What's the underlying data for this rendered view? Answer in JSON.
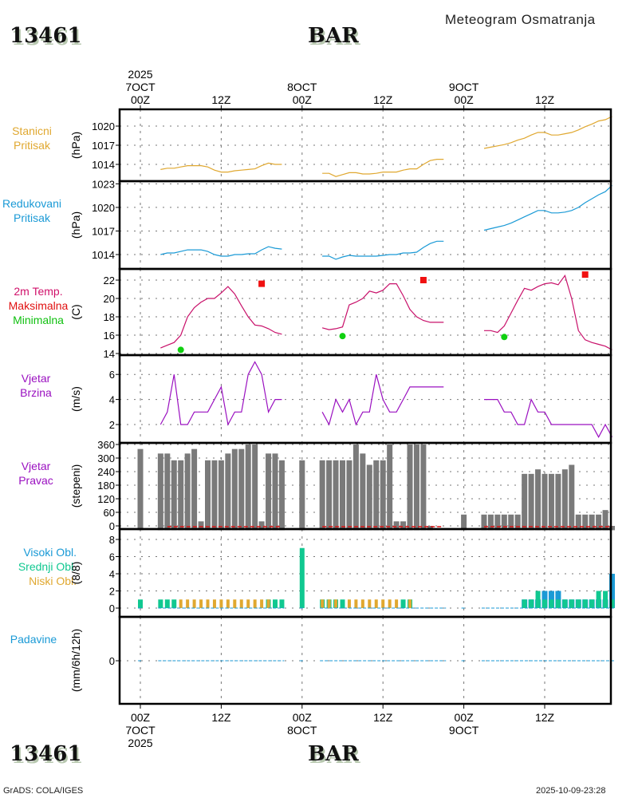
{
  "header": {
    "station_id": "13461",
    "station_name": "BAR",
    "title": "Meteogram Osmatranja"
  },
  "footer": {
    "left": "GrADS: COLA/IGES",
    "right": "2025-10-09-23:28",
    "station_id": "13461",
    "station_name": "BAR"
  },
  "time_axis": {
    "top_ticks": [
      {
        "lines": [
          "2025",
          "7OCT",
          "00Z"
        ]
      },
      {
        "lines": [
          "12Z"
        ]
      },
      {
        "lines": [
          "8OCT",
          "00Z"
        ]
      },
      {
        "lines": [
          "12Z"
        ]
      },
      {
        "lines": [
          "9OCT",
          "00Z"
        ]
      },
      {
        "lines": [
          "12Z"
        ]
      }
    ],
    "bottom_ticks": [
      {
        "lines": [
          "00Z",
          "7OCT",
          "2025"
        ]
      },
      {
        "lines": [
          "12Z"
        ]
      },
      {
        "lines": [
          "00Z",
          "8OCT"
        ]
      },
      {
        "lines": [
          "12Z"
        ]
      },
      {
        "lines": [
          "00Z",
          "9OCT"
        ]
      },
      {
        "lines": [
          "12Z"
        ]
      }
    ],
    "tick_hours": [
      0,
      12,
      24,
      36,
      48,
      60
    ],
    "range_hours": [
      -3,
      70
    ]
  },
  "panels": {
    "station_pressure": {
      "labels": [
        "Stanicni",
        "Pritisak"
      ],
      "unit": "(hPa)",
      "color": "#e0a830"
    },
    "reduced_pressure": {
      "labels": [
        "Redukovani",
        "Pritisak"
      ],
      "unit": "(hPa)",
      "color": "#1a9ad6"
    },
    "temperature": {
      "labels": [
        "2m Temp.",
        "Maksimalna",
        "Minimalna"
      ],
      "label_colors": [
        "#d0106a",
        "#e01010",
        "#10c010"
      ],
      "unit": "(C)",
      "color": "#c8106a"
    },
    "wind_speed": {
      "labels": [
        "Vjetar",
        "Brzina"
      ],
      "unit": "(m/s)",
      "color": "#9a10c0"
    },
    "wind_dir": {
      "labels": [
        "Vjetar",
        "Pravac"
      ],
      "unit": "(stepeni)",
      "color": "#9a10c0"
    },
    "clouds": {
      "labels": [
        "Visoki Obl.",
        "Srednji Obl.",
        "Niski Obl."
      ],
      "label_colors": [
        "#1a9ad6",
        "#10c890",
        "#e0a830"
      ],
      "unit": "(8/8)"
    },
    "precip": {
      "labels": [
        "Padavine"
      ],
      "unit": "(mm/6h/12h)",
      "color": "#1a9ad6"
    }
  },
  "chart_data": [
    {
      "type": "line",
      "name": "Stanicni Pritisak",
      "ylabel": "(hPa)",
      "yticks": [
        1014,
        1017,
        1020
      ],
      "ylim": [
        1011.3,
        1022.6
      ],
      "segments": [
        {
          "x": [
            3,
            4,
            5,
            6,
            7,
            8,
            9,
            10,
            11,
            12,
            13,
            14,
            15,
            16,
            17,
            18,
            19,
            20,
            21
          ],
          "y": [
            1013.2,
            1013.4,
            1013.4,
            1013.6,
            1013.8,
            1013.8,
            1013.8,
            1013.6,
            1013.1,
            1012.8,
            1012.8,
            1013.0,
            1013.1,
            1013.2,
            1013.3,
            1013.8,
            1014.2,
            1014.0,
            1014.0
          ]
        },
        {
          "x": [
            27,
            28,
            29,
            30,
            31,
            32,
            33,
            34,
            35,
            36,
            37,
            38,
            39,
            40,
            41,
            42,
            43,
            44,
            45
          ],
          "y": [
            1012.6,
            1012.6,
            1012.1,
            1012.4,
            1012.7,
            1012.7,
            1012.5,
            1012.5,
            1012.6,
            1012.8,
            1012.8,
            1012.8,
            1013.1,
            1013.3,
            1013.3,
            1014.0,
            1014.6,
            1014.8,
            1014.8
          ]
        },
        {
          "x": [
            51,
            52,
            53,
            54,
            55,
            56,
            57,
            58,
            59,
            60,
            61,
            62,
            63,
            64,
            65,
            66,
            67,
            68,
            69,
            70
          ],
          "y": [
            1016.5,
            1016.7,
            1016.9,
            1017.1,
            1017.4,
            1017.8,
            1018.1,
            1018.6,
            1019.0,
            1019.0,
            1018.6,
            1018.6,
            1018.8,
            1019.0,
            1019.4,
            1019.9,
            1020.3,
            1020.8,
            1021.0,
            1021.5
          ]
        }
      ]
    },
    {
      "type": "line",
      "name": "Redukovani Pritisak",
      "ylabel": "(hPa)",
      "yticks": [
        1014,
        1017,
        1020,
        1023
      ],
      "ylim": [
        1012.2,
        1023.2
      ],
      "segments": [
        {
          "x": [
            3,
            4,
            5,
            6,
            7,
            8,
            9,
            10,
            11,
            12,
            13,
            14,
            15,
            16,
            17,
            18,
            19,
            20,
            21
          ],
          "y": [
            1014.0,
            1014.2,
            1014.2,
            1014.4,
            1014.6,
            1014.6,
            1014.6,
            1014.4,
            1014.0,
            1013.8,
            1013.8,
            1014.0,
            1014.0,
            1014.1,
            1014.1,
            1014.6,
            1015.0,
            1014.8,
            1014.7
          ]
        },
        {
          "x": [
            27,
            28,
            29,
            30,
            31,
            32,
            33,
            34,
            35,
            36,
            37,
            38,
            39,
            40,
            41,
            42,
            43,
            44,
            45
          ],
          "y": [
            1013.8,
            1013.8,
            1013.4,
            1013.7,
            1013.9,
            1013.8,
            1013.8,
            1013.8,
            1013.8,
            1013.9,
            1014.0,
            1014.0,
            1014.2,
            1014.2,
            1014.3,
            1014.9,
            1015.4,
            1015.7,
            1015.7
          ]
        },
        {
          "x": [
            51,
            52,
            53,
            54,
            55,
            56,
            57,
            58,
            59,
            60,
            61,
            62,
            63,
            64,
            65,
            66,
            67,
            68,
            69,
            70
          ],
          "y": [
            1017.1,
            1017.3,
            1017.5,
            1017.7,
            1018.0,
            1018.4,
            1018.8,
            1019.2,
            1019.6,
            1019.6,
            1019.3,
            1019.3,
            1019.4,
            1019.6,
            1020.0,
            1020.6,
            1021.1,
            1021.6,
            1022.0,
            1022.8
          ]
        }
      ]
    },
    {
      "type": "line",
      "name": "2m Temp.",
      "ylabel": "(C)",
      "yticks": [
        14,
        16,
        18,
        20,
        22
      ],
      "ylim": [
        13.9,
        23.2
      ],
      "segments": [
        {
          "x": [
            3,
            4,
            5,
            6,
            7,
            8,
            9,
            10,
            11,
            12,
            13,
            14,
            15,
            16,
            17,
            18,
            19,
            20,
            21
          ],
          "y": [
            14.6,
            14.9,
            15.2,
            16.0,
            18.0,
            19.0,
            19.6,
            20.0,
            20.0,
            20.6,
            21.3,
            20.5,
            19.2,
            18.0,
            17.1,
            17.0,
            16.7,
            16.3,
            16.1
          ]
        },
        {
          "x": [
            27,
            28,
            29,
            30,
            31,
            32,
            33,
            34,
            35,
            36,
            37,
            38,
            39,
            40,
            41,
            42,
            43,
            44,
            45
          ],
          "y": [
            16.8,
            16.6,
            16.7,
            16.9,
            19.3,
            19.6,
            20.0,
            20.8,
            20.6,
            20.9,
            21.6,
            21.6,
            20.3,
            18.8,
            18.0,
            17.6,
            17.4,
            17.4,
            17.4
          ]
        },
        {
          "x": [
            51,
            52,
            53,
            54,
            55,
            56,
            57,
            58,
            59,
            60,
            61,
            62,
            63,
            64,
            65,
            66,
            67,
            68,
            69,
            70
          ],
          "y": [
            16.5,
            16.5,
            16.3,
            17.0,
            18.4,
            19.8,
            21.1,
            20.9,
            21.3,
            21.6,
            21.7,
            21.5,
            22.5,
            20.0,
            16.5,
            15.5,
            15.2,
            15.0,
            14.8,
            14.4
          ]
        }
      ],
      "maxima": [
        {
          "x": 18,
          "y": 21.6
        },
        {
          "x": 42,
          "y": 22.0
        },
        {
          "x": 66,
          "y": 22.6
        }
      ],
      "minima": [
        {
          "x": 6,
          "y": 14.4
        },
        {
          "x": 30,
          "y": 15.9
        },
        {
          "x": 54,
          "y": 15.8
        }
      ]
    },
    {
      "type": "line",
      "name": "Vjetar Brzina",
      "ylabel": "(m/s)",
      "yticks": [
        2,
        4,
        6
      ],
      "ylim": [
        1,
        7.5
      ],
      "segments": [
        {
          "x": [
            3,
            4,
            5,
            6,
            7,
            8,
            9,
            10,
            11,
            12,
            13,
            14,
            15,
            16,
            17,
            18,
            19,
            20,
            21
          ],
          "y": [
            2,
            3,
            6,
            2,
            2,
            3,
            3,
            3,
            4,
            5,
            2,
            3,
            3,
            6,
            7,
            6,
            3,
            4,
            4
          ]
        },
        {
          "x": [
            27,
            28,
            29,
            30,
            31,
            32,
            33,
            34,
            35,
            36,
            37,
            38,
            39,
            40,
            41,
            42,
            43,
            44,
            45
          ],
          "y": [
            3,
            2,
            4,
            3,
            4,
            2,
            3,
            3,
            6,
            4,
            3,
            3,
            4,
            5,
            5,
            5,
            5,
            5,
            5
          ]
        },
        {
          "x": [
            51,
            52,
            53,
            54,
            55,
            56,
            57,
            58,
            59,
            60,
            61,
            62,
            63,
            64,
            65,
            66,
            67,
            68,
            69,
            70
          ],
          "y": [
            4,
            4,
            4,
            3,
            3,
            2,
            2,
            4,
            3,
            3,
            2,
            2,
            2,
            2,
            2,
            2,
            2,
            1,
            2,
            1
          ]
        }
      ]
    },
    {
      "type": "bar",
      "name": "Vjetar Pravac",
      "ylabel": "(stepeni)",
      "yticks": [
        0,
        60,
        120,
        180,
        240,
        300,
        360
      ],
      "ylim": [
        -5,
        365
      ],
      "x": [
        0,
        3,
        4,
        5,
        6,
        7,
        8,
        9,
        10,
        11,
        12,
        13,
        14,
        15,
        16,
        17,
        18,
        19,
        20,
        21,
        24,
        27,
        28,
        29,
        30,
        31,
        32,
        33,
        34,
        35,
        36,
        37,
        38,
        39,
        40,
        41,
        42,
        43,
        48,
        51,
        52,
        53,
        54,
        55,
        56,
        57,
        58,
        59,
        60,
        61,
        62,
        63,
        64,
        65,
        66,
        67,
        68,
        69,
        70
      ],
      "values": [
        340,
        320,
        320,
        290,
        290,
        320,
        340,
        20,
        290,
        290,
        290,
        320,
        340,
        340,
        360,
        360,
        20,
        320,
        320,
        290,
        290,
        290,
        290,
        290,
        290,
        290,
        360,
        320,
        270,
        290,
        290,
        360,
        20,
        20,
        360,
        360,
        360,
        0,
        50,
        50,
        50,
        50,
        50,
        50,
        50,
        230,
        230,
        250,
        230,
        230,
        230,
        250,
        270,
        50,
        50,
        50,
        50,
        70,
        0
      ],
      "calm_line_segments": [
        [
          4,
          21
        ],
        [
          27,
          45
        ],
        [
          51,
          70
        ]
      ]
    },
    {
      "type": "bar",
      "name": "Oblacnost",
      "ylabel": "(8/8)",
      "yticks": [
        0,
        2,
        4,
        6,
        8
      ],
      "ylim": [
        -0.3,
        8.5
      ],
      "x": [
        0,
        3,
        4,
        5,
        6,
        7,
        8,
        9,
        10,
        11,
        12,
        13,
        14,
        15,
        16,
        17,
        18,
        19,
        20,
        21,
        24,
        27,
        28,
        29,
        30,
        31,
        32,
        33,
        34,
        35,
        36,
        37,
        38,
        39,
        40,
        41,
        42,
        43,
        48,
        51,
        52,
        53,
        54,
        55,
        56,
        57,
        58,
        59,
        60,
        61,
        62,
        63,
        64,
        65,
        66,
        67,
        68,
        69,
        70
      ],
      "series": [
        {
          "name": "Visoki Obl.",
          "values": [
            0,
            0,
            0,
            0,
            0,
            0,
            0,
            0,
            0,
            0,
            0,
            0,
            0,
            0,
            0,
            0,
            0,
            0,
            0,
            0,
            0,
            0,
            0,
            0,
            0,
            0,
            0,
            0,
            0,
            0,
            0,
            0,
            0,
            0,
            0,
            0,
            0,
            0,
            0,
            0,
            0,
            0,
            0,
            0,
            0,
            1,
            1,
            1,
            2,
            2,
            2,
            1,
            1,
            1,
            1,
            1,
            1,
            1,
            4
          ]
        },
        {
          "name": "Srednji Obl.",
          "values": [
            1,
            1,
            1,
            1,
            0,
            0,
            0,
            0,
            0,
            0,
            0,
            0,
            0,
            0,
            0,
            0,
            0,
            1,
            1,
            1,
            7,
            1,
            1,
            1,
            1,
            0,
            0,
            0,
            0,
            0,
            0,
            0,
            0,
            1,
            1,
            0,
            0,
            0,
            0,
            0,
            0,
            0,
            0,
            0,
            0,
            1,
            1,
            2,
            1,
            1,
            1,
            1,
            1,
            1,
            1,
            1,
            2,
            2,
            1
          ]
        },
        {
          "name": "Niski Obl.",
          "values": [
            0,
            0,
            0,
            0,
            1,
            1,
            1,
            1,
            1,
            1,
            1,
            1,
            1,
            1,
            1,
            1,
            1,
            1,
            0,
            0,
            0,
            1,
            1,
            1,
            0,
            1,
            1,
            1,
            1,
            1,
            1,
            1,
            1,
            0,
            1,
            0,
            0,
            0,
            0,
            0,
            0,
            0,
            0,
            0,
            0,
            0,
            0,
            0,
            0,
            0,
            0,
            0,
            0,
            0,
            0,
            0,
            0,
            0,
            0
          ]
        }
      ]
    },
    {
      "type": "line",
      "name": "Padavine",
      "ylabel": "(mm/6h/12h)",
      "yticks": [
        0
      ],
      "values_all_zero": true,
      "segments": [
        [
          0,
          0
        ],
        [
          3,
          21
        ],
        [
          24,
          24
        ],
        [
          27,
          45
        ],
        [
          48,
          48
        ],
        [
          51,
          70
        ]
      ]
    }
  ]
}
